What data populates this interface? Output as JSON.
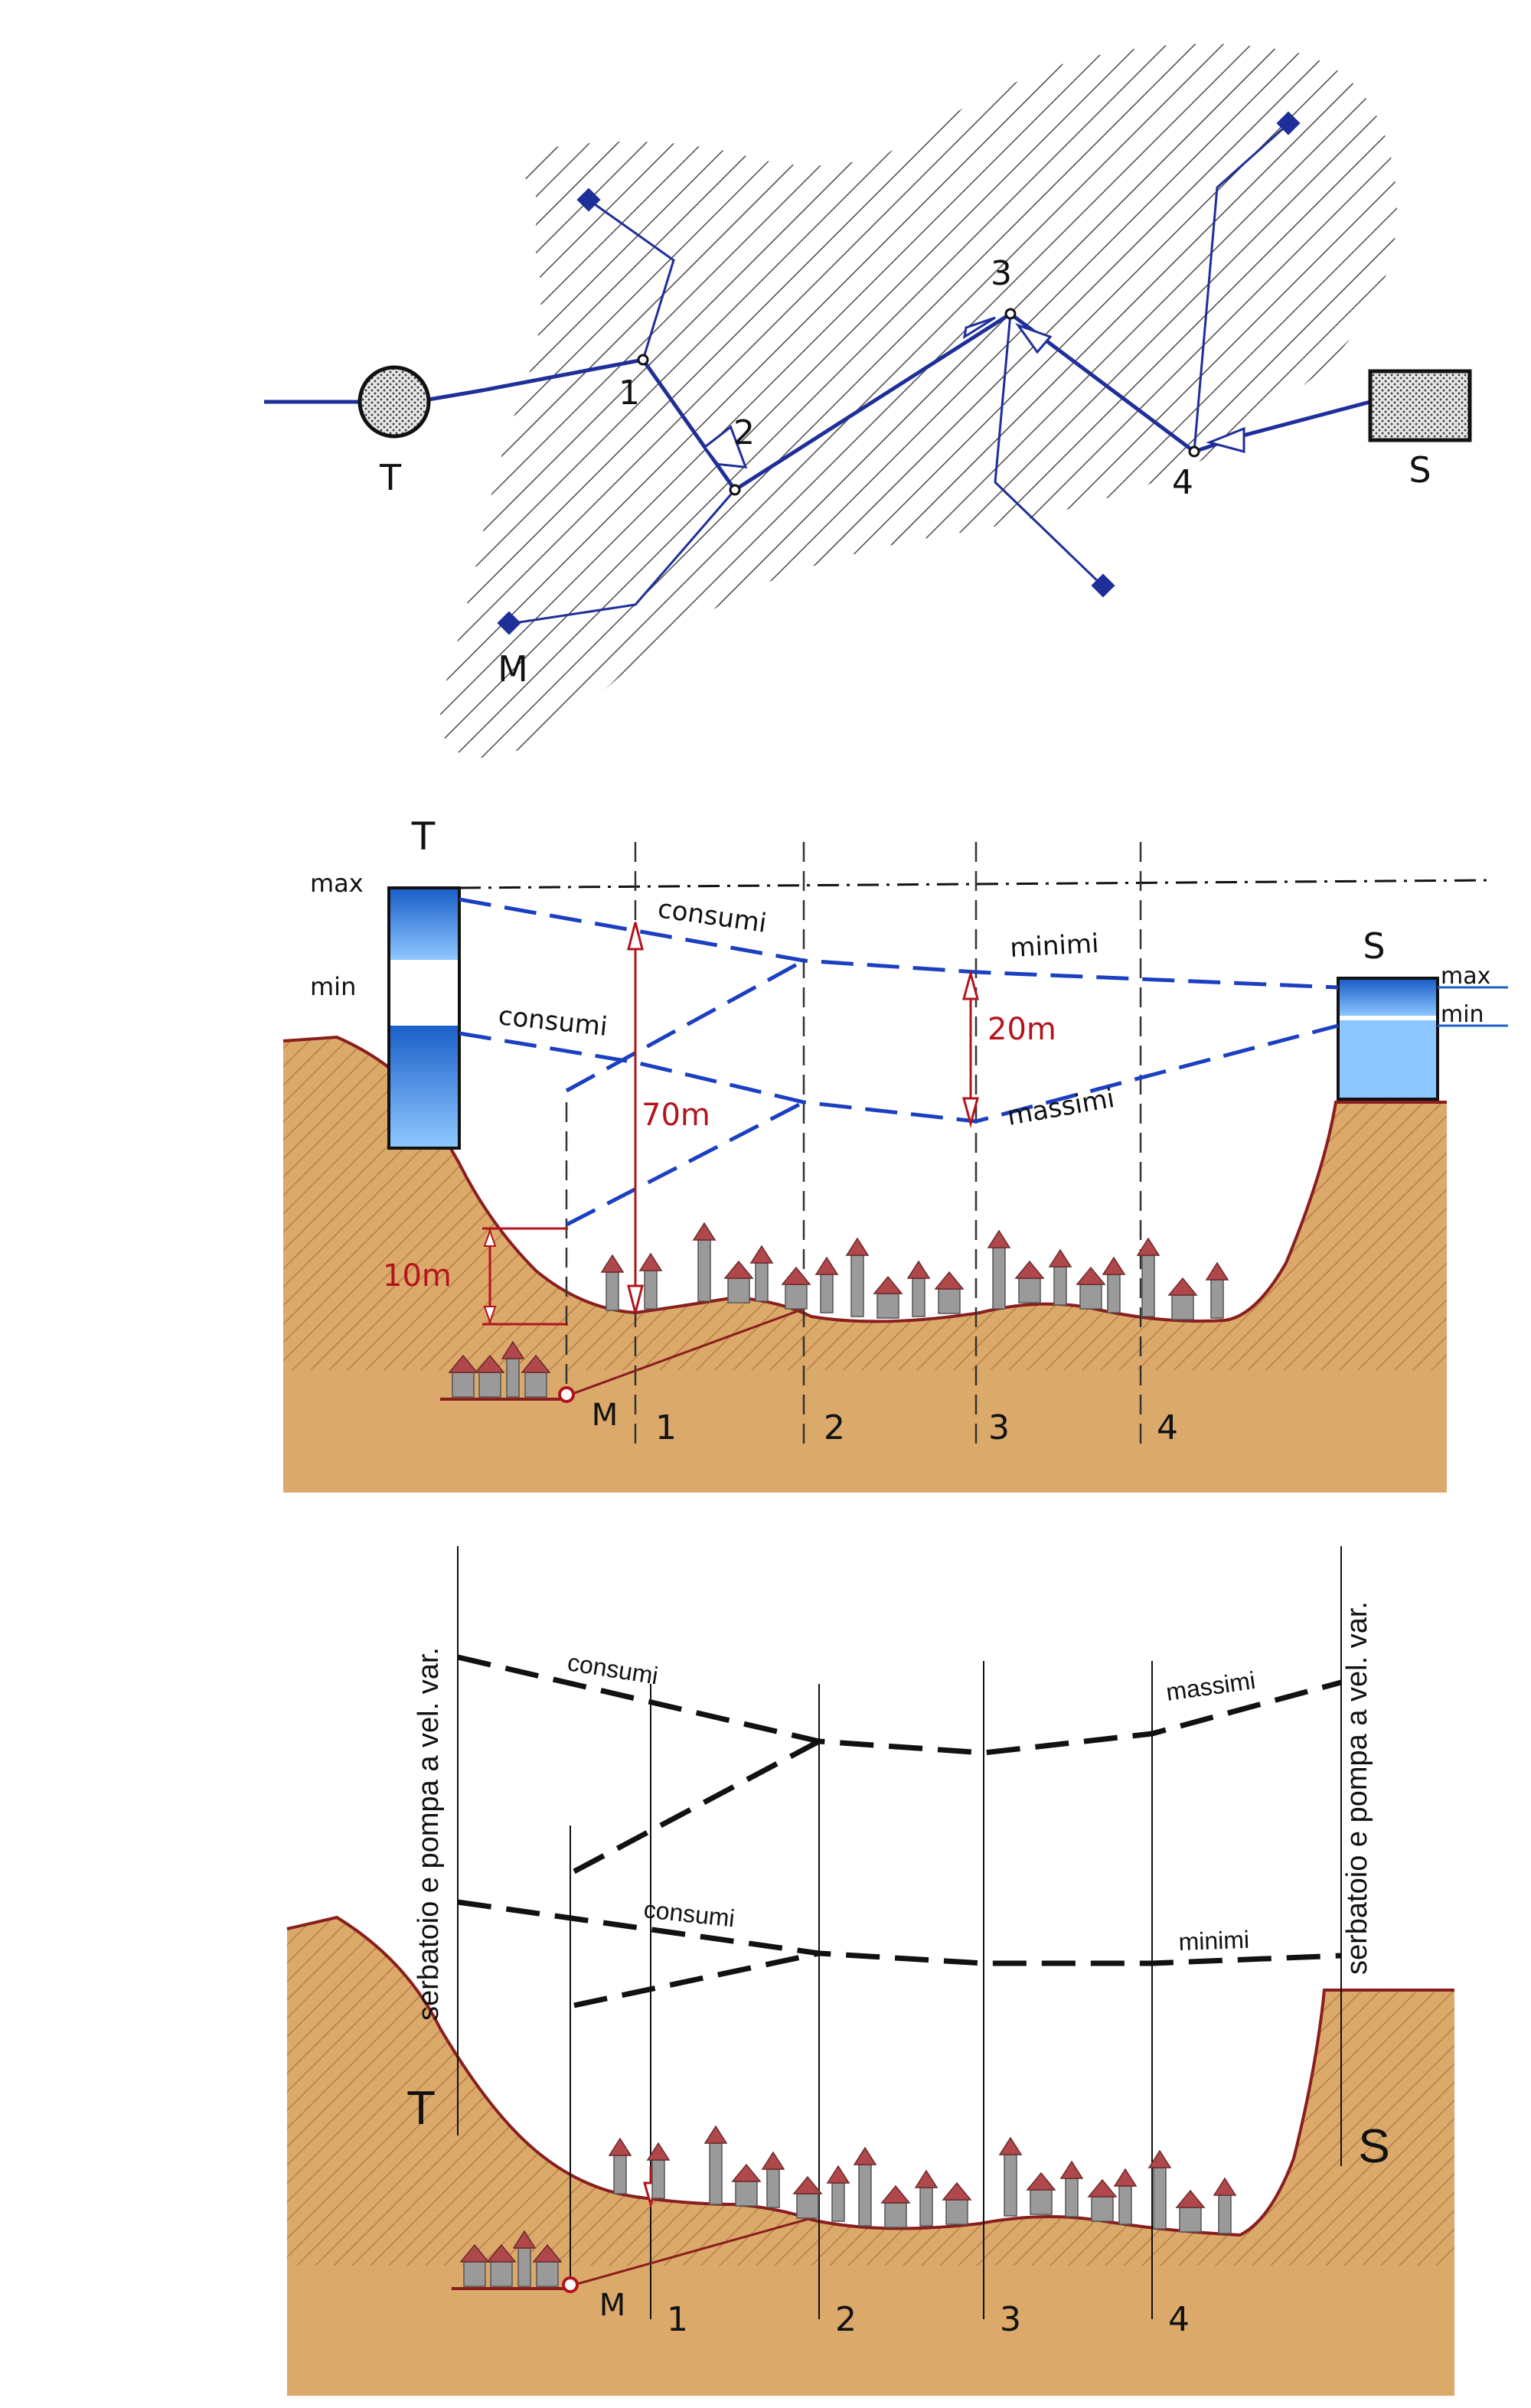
{
  "colors": {
    "network": "#1f2f9a",
    "hatch": "#4a4a4a",
    "soil": "#dba96a",
    "soil_edge": "#8a1e1e",
    "red": "#b3141c",
    "water_dark": "#1b5fc9",
    "water_light": "#8ec7ff",
    "roof": "#b0474b",
    "house": "#9a9a9a"
  },
  "plan": {
    "tank_T": "T",
    "tank_S": "S",
    "well_M": "M",
    "node_1": "1",
    "node_2": "2",
    "node_3": "3",
    "node_4": "4"
  },
  "profile1": {
    "tank_T": "T",
    "tank_S": "S",
    "max_left": "max",
    "min_left": "min",
    "max_right": "max",
    "min_right": "min",
    "consumi_top": "consumi",
    "consumi_mid": "consumi",
    "minimi": "minimi",
    "massimi": "massimi",
    "dim_70": "70m",
    "dim_20": "20m",
    "dim_10": "10m",
    "well_M": "M",
    "section_1": "1",
    "section_2": "2",
    "section_3": "3",
    "section_4": "4"
  },
  "profile2": {
    "vertical_left": "serbatoio e pompa a vel. var.",
    "vertical_right": "serbatoio e pompa a vel. var.",
    "consumi_top": "consumi",
    "massimi": "massimi",
    "consumi_low": "consumi",
    "minimi": "minimi",
    "tank_T": "T",
    "tank_S": "S",
    "well_M": "M",
    "section_1": "1",
    "section_2": "2",
    "section_3": "3",
    "section_4": "4"
  }
}
